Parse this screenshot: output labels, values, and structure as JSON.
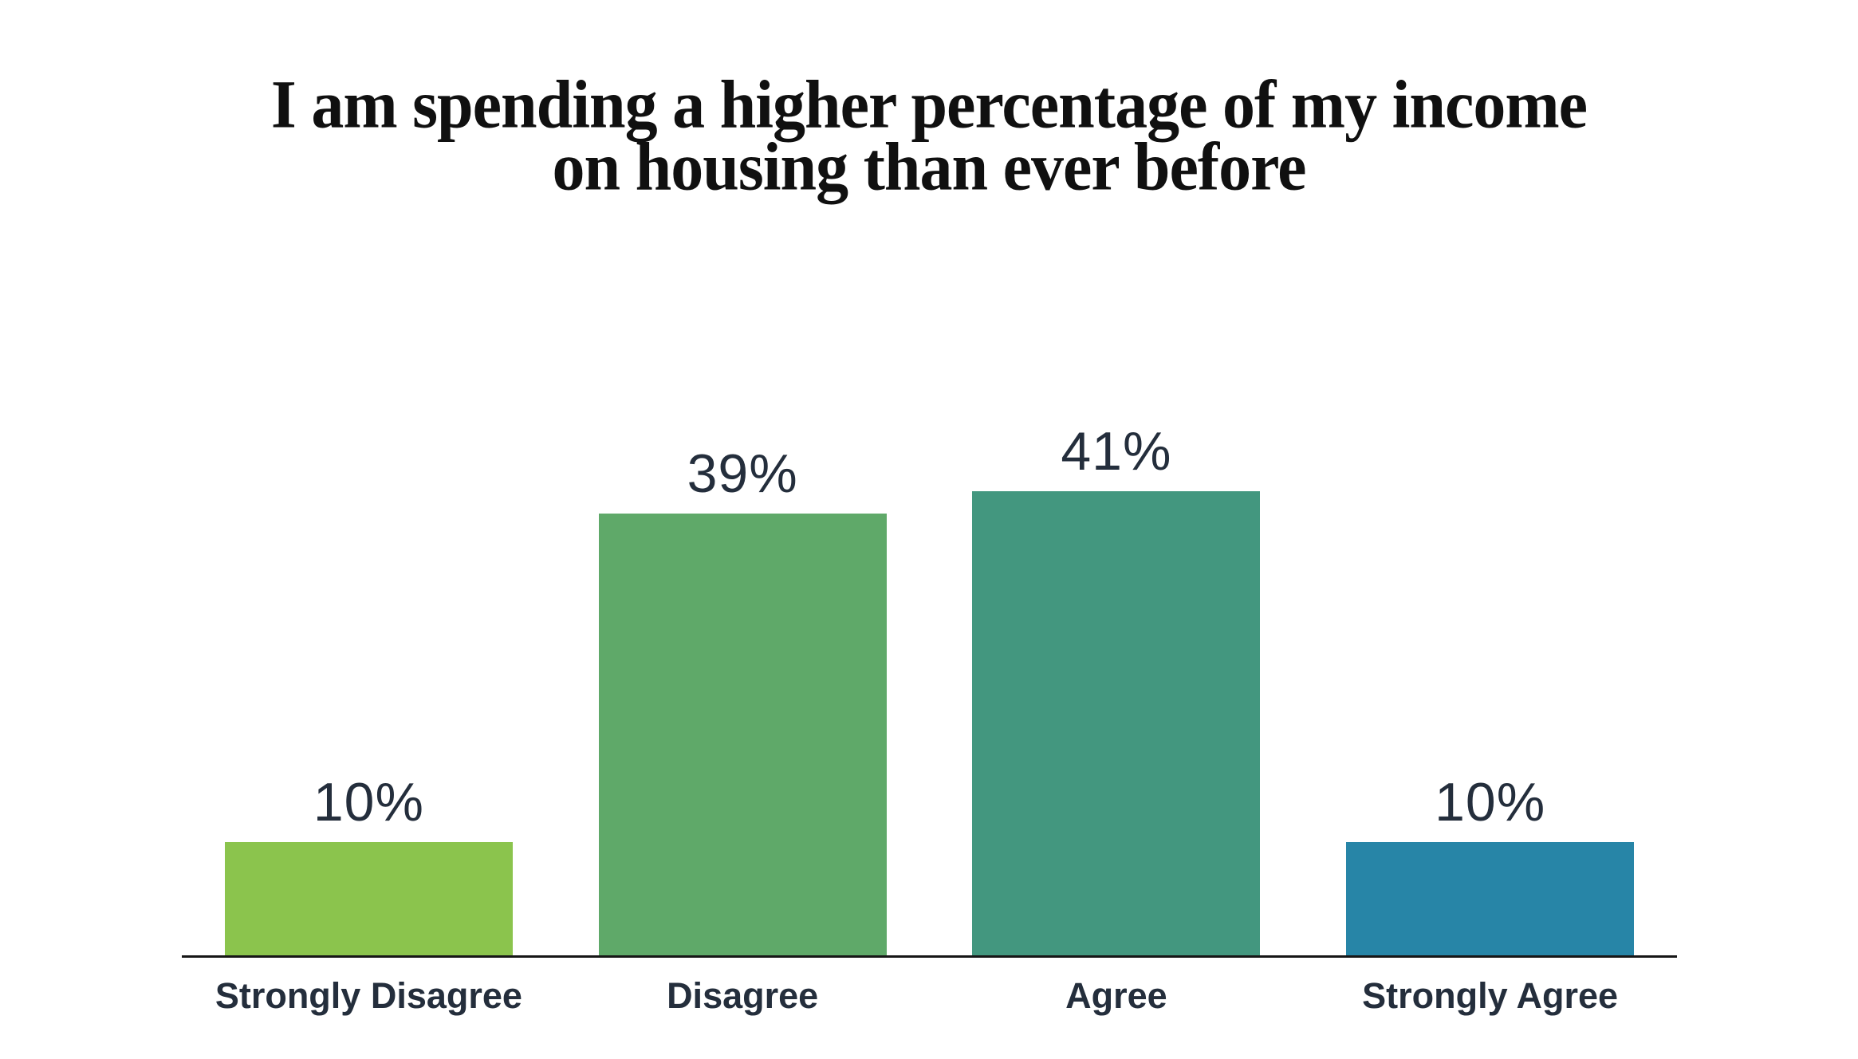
{
  "title": {
    "line1": "I am spending a higher percentage of my income",
    "line2": "on housing than ever before"
  },
  "chart_data": {
    "type": "bar",
    "title": "I am spending a higher percentage of my income on housing than ever before",
    "categories": [
      "Strongly Disagree",
      "Disagree",
      "Agree",
      "Strongly Agree"
    ],
    "values": [
      10,
      39,
      41,
      10
    ],
    "value_labels": [
      "10%",
      "39%",
      "41%",
      "10%"
    ],
    "bar_colors": [
      "#8BC44D",
      "#5FA969",
      "#43977F",
      "#2785A7"
    ],
    "xlabel": "",
    "ylabel": "",
    "ylim": [
      0,
      45
    ],
    "grid": false,
    "legend": false,
    "orientation": "vertical",
    "data_label_position": "above-bar"
  },
  "colors": {
    "title_text": "#101010",
    "data_label_text": "#242E3C",
    "category_label_text": "#242E3C",
    "axis_line": "#161616",
    "background": "#FFFFFF"
  }
}
